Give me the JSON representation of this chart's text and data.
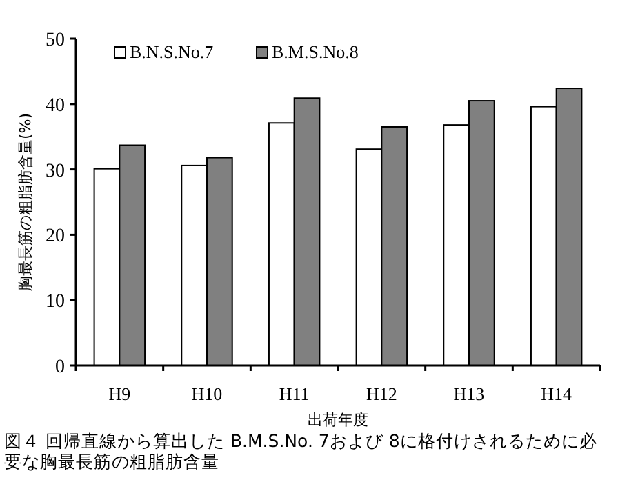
{
  "chart_data": {
    "type": "bar",
    "categories": [
      "H9",
      "H10",
      "H11",
      "H12",
      "H13",
      "H14"
    ],
    "series": [
      {
        "name": "B.N.S.No.7",
        "color": "#ffffff",
        "values": [
          30.1,
          30.6,
          37.1,
          33.1,
          36.8,
          39.6
        ]
      },
      {
        "name": "B.M.S.No.8",
        "color": "#808080",
        "values": [
          33.7,
          31.8,
          40.9,
          36.5,
          40.5,
          42.4
        ]
      }
    ],
    "xlabel": "出荷年度",
    "ylabel": "胸最長筋の粗脂肪含量(%)",
    "ylim": [
      0,
      50
    ],
    "yticks": [
      0,
      10,
      20,
      30,
      40,
      50
    ],
    "grid": false,
    "legend": "top left",
    "annotations": [
      "図４ 回帰直線から算出した B.M.S.No. 7および 8に格付けされるために必要な胸最長筋の粗脂肪含量"
    ]
  }
}
